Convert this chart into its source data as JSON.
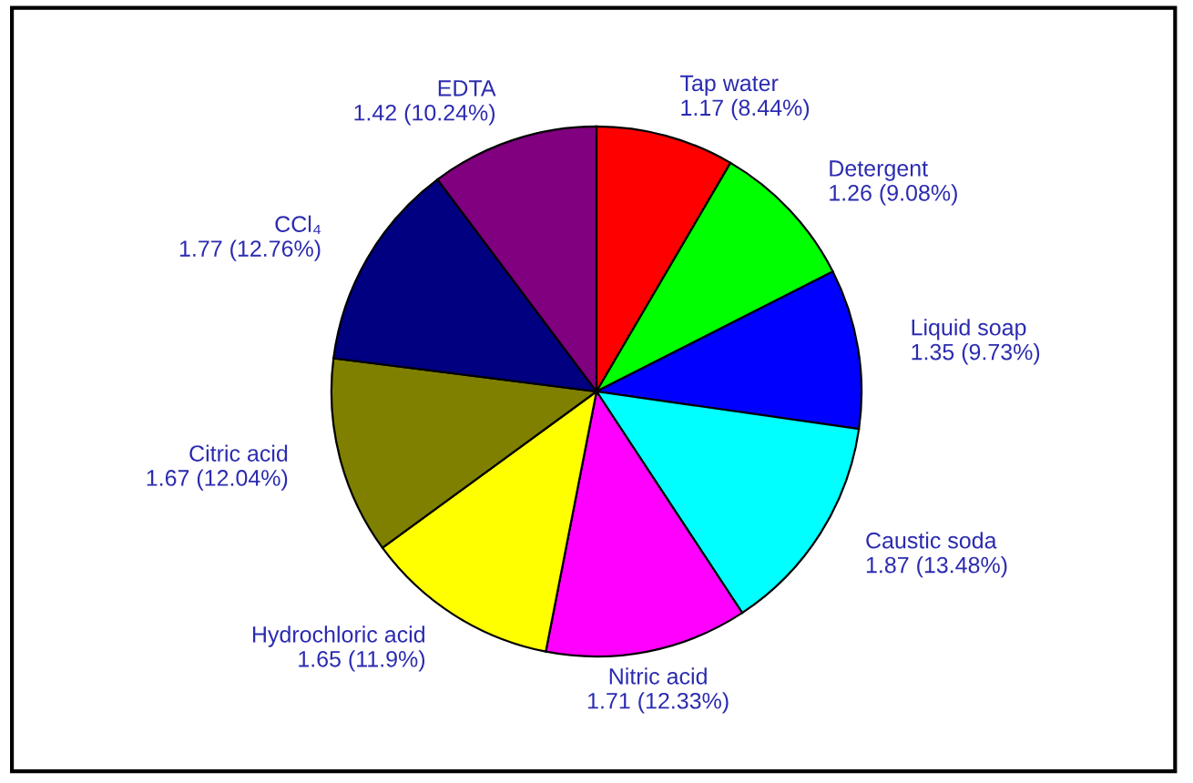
{
  "chart_data": {
    "type": "pie",
    "categories": [
      "Tap water",
      "Detergent",
      "Liquid soap",
      "Caustic soda",
      "Nitric acid",
      "Hydrochloric acid",
      "Citric acid",
      "CCl₄",
      "EDTA"
    ],
    "values": [
      1.17,
      1.26,
      1.35,
      1.87,
      1.71,
      1.65,
      1.67,
      1.77,
      1.42
    ],
    "value_labels": [
      "1.17 (8.44%)",
      "1.26 (9.08%)",
      "1.35 (9.73%)",
      "1.87 (13.48%)",
      "1.71 (12.33%)",
      "1.65 (11.9%)",
      "1.67 (12.04%)",
      "1.77 (12.76%)",
      "1.42 (10.24%)"
    ],
    "colors": [
      "#ff0000",
      "#00ff00",
      "#0000ff",
      "#00ffff",
      "#ff00ff",
      "#ffff00",
      "#808000",
      "#000080",
      "#800080"
    ],
    "legend": false
  }
}
